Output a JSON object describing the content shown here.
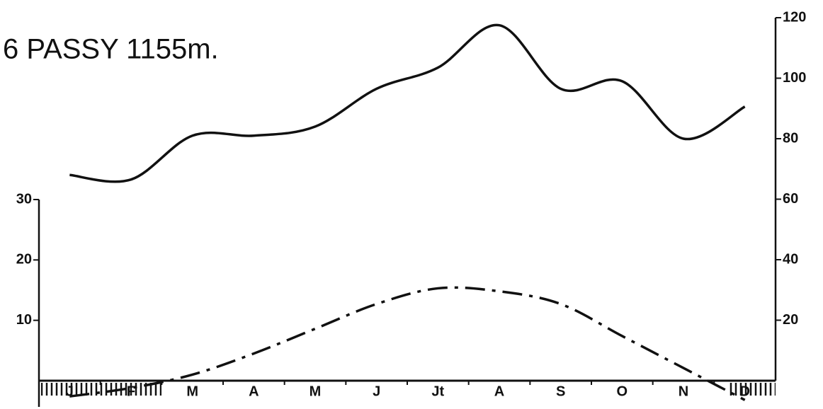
{
  "chart_data": {
    "type": "line",
    "title": "6 PASSY 1155m.",
    "categories": [
      "J",
      "F",
      "M",
      "A",
      "M",
      "J",
      "Jt",
      "A",
      "S",
      "O",
      "N",
      "D"
    ],
    "ylim": [
      0,
      30
    ],
    "yticks": [
      10,
      20,
      30
    ],
    "y2lim": [
      0,
      120
    ],
    "y2ticks": [
      20,
      40,
      60,
      80,
      100,
      120
    ],
    "series": [
      {
        "color": "#111111",
        "style": "solid",
        "axis": "y2",
        "values": [
          68,
          66.5,
          81,
          81,
          84,
          96.5,
          103.5,
          117.5,
          96.5,
          99,
          80,
          90.6
        ]
      },
      {
        "color": "#111111",
        "style": "dashdot",
        "values": [
          -2.6,
          -1.2,
          1,
          4.5,
          8.6,
          12.7,
          15.3,
          14.8,
          12.7,
          7.4,
          2.1,
          -3.2
        ]
      }
    ]
  }
}
